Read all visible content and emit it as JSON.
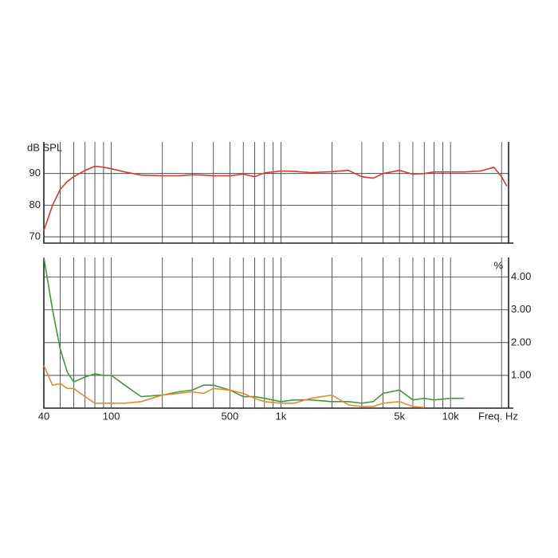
{
  "chart_data": [
    {
      "type": "line",
      "ylabel": "dB SPL",
      "log_x": true,
      "y_side": "left",
      "xlim": [
        40,
        22000
      ],
      "ylim": [
        68,
        100
      ],
      "yticks": [
        70,
        80,
        90
      ],
      "grid": true,
      "xgrid": [
        40,
        50,
        60,
        70,
        80,
        90,
        100,
        200,
        300,
        400,
        500,
        600,
        700,
        800,
        900,
        1000,
        2000,
        3000,
        4000,
        5000,
        6000,
        7000,
        8000,
        9000,
        10000,
        20000
      ],
      "x": [
        40,
        45,
        50,
        55,
        60,
        70,
        80,
        90,
        100,
        120,
        150,
        200,
        250,
        300,
        350,
        400,
        500,
        600,
        700,
        800,
        1000,
        1200,
        1500,
        2000,
        2500,
        3000,
        3500,
        4000,
        5000,
        6000,
        7000,
        8000,
        10000,
        12000,
        15000,
        18000,
        20000,
        21500
      ],
      "series": [
        {
          "color": "#d63a2a",
          "values": [
            72,
            80,
            85,
            87.5,
            89,
            91,
            92.3,
            92,
            91.5,
            90.5,
            89.5,
            89.3,
            89.3,
            89.6,
            89.5,
            89.3,
            89.3,
            89.8,
            89,
            90.2,
            90.8,
            90.7,
            90.3,
            90.6,
            91,
            89,
            88.5,
            90,
            91,
            89.8,
            90,
            90.5,
            90.5,
            90.5,
            90.8,
            92,
            89,
            86
          ]
        }
      ]
    },
    {
      "type": "line",
      "ylabel": "%",
      "xlabel": "Freq. Hz",
      "log_x": true,
      "y_side": "right",
      "xlim": [
        40,
        22000
      ],
      "ylim": [
        0,
        4.6
      ],
      "grid": true,
      "yticks": [
        {
          "value": 1,
          "label": "1.00"
        },
        {
          "value": 2,
          "label": "2.00"
        },
        {
          "value": 3,
          "label": "3.00"
        },
        {
          "value": 4,
          "label": "4.00"
        }
      ],
      "xticks": [
        40,
        100,
        500,
        {
          "value": 1000,
          "label": "1k"
        },
        {
          "value": 5000,
          "label": "5k"
        },
        {
          "value": 10000,
          "label": "10k"
        }
      ],
      "xgrid": [
        40,
        50,
        60,
        70,
        80,
        90,
        100,
        200,
        300,
        400,
        500,
        600,
        700,
        800,
        900,
        1000,
        2000,
        3000,
        4000,
        5000,
        6000,
        7000,
        8000,
        9000,
        10000,
        20000
      ],
      "x": [
        40,
        45,
        50,
        55,
        60,
        70,
        80,
        90,
        100,
        120,
        150,
        200,
        250,
        300,
        350,
        400,
        500,
        600,
        700,
        800,
        1000,
        1200,
        1500,
        2000,
        2500,
        3000,
        3500,
        4000,
        5000,
        6000,
        7000,
        8000,
        10000,
        12000
      ],
      "series": [
        {
          "color": "#3e9a3e",
          "values": [
            4.6,
            3.0,
            1.8,
            1.1,
            0.8,
            0.95,
            1.05,
            1.0,
            1.0,
            0.7,
            0.35,
            0.4,
            0.5,
            0.55,
            0.7,
            0.7,
            0.55,
            0.35,
            0.35,
            0.3,
            0.2,
            0.25,
            0.25,
            0.2,
            0.2,
            0.15,
            0.2,
            0.45,
            0.55,
            0.25,
            0.3,
            0.25,
            0.3,
            0.3
          ]
        },
        {
          "color": "#e88a2a",
          "values": [
            1.3,
            0.7,
            0.75,
            0.6,
            0.6,
            0.35,
            0.15,
            0.15,
            0.15,
            0.15,
            0.2,
            0.4,
            0.45,
            0.5,
            0.45,
            0.6,
            0.55,
            0.45,
            0.3,
            0.2,
            0.15,
            0.15,
            0.3,
            0.4,
            0.1,
            0.05,
            0.05,
            0.15,
            0.2,
            0.05,
            0.02,
            null,
            null,
            null
          ]
        }
      ]
    }
  ]
}
